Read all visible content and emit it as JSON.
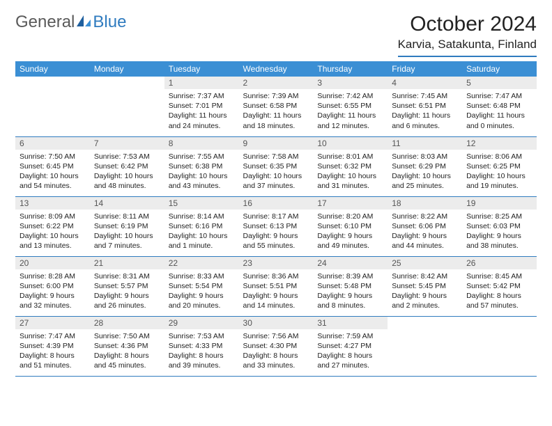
{
  "logo": {
    "text1": "General",
    "text2": "Blue"
  },
  "title": "October 2024",
  "location": "Karvia, Satakunta, Finland",
  "colors": {
    "header_bg": "#3b8fd4",
    "rule": "#2f7bbf",
    "daynum_bg": "#ececec",
    "text": "#222222",
    "logo_gray": "#5a5a5a",
    "logo_blue": "#2f7bbf"
  },
  "typography": {
    "title_fontsize": 30,
    "location_fontsize": 17,
    "weekday_fontsize": 12,
    "daynum_fontsize": 12,
    "body_fontsize": 10.5
  },
  "weekdays": [
    "Sunday",
    "Monday",
    "Tuesday",
    "Wednesday",
    "Thursday",
    "Friday",
    "Saturday"
  ],
  "weeks": [
    [
      null,
      null,
      {
        "d": "1",
        "sr": "Sunrise: 7:37 AM",
        "ss": "Sunset: 7:01 PM",
        "dl1": "Daylight: 11 hours",
        "dl2": "and 24 minutes."
      },
      {
        "d": "2",
        "sr": "Sunrise: 7:39 AM",
        "ss": "Sunset: 6:58 PM",
        "dl1": "Daylight: 11 hours",
        "dl2": "and 18 minutes."
      },
      {
        "d": "3",
        "sr": "Sunrise: 7:42 AM",
        "ss": "Sunset: 6:55 PM",
        "dl1": "Daylight: 11 hours",
        "dl2": "and 12 minutes."
      },
      {
        "d": "4",
        "sr": "Sunrise: 7:45 AM",
        "ss": "Sunset: 6:51 PM",
        "dl1": "Daylight: 11 hours",
        "dl2": "and 6 minutes."
      },
      {
        "d": "5",
        "sr": "Sunrise: 7:47 AM",
        "ss": "Sunset: 6:48 PM",
        "dl1": "Daylight: 11 hours",
        "dl2": "and 0 minutes."
      }
    ],
    [
      {
        "d": "6",
        "sr": "Sunrise: 7:50 AM",
        "ss": "Sunset: 6:45 PM",
        "dl1": "Daylight: 10 hours",
        "dl2": "and 54 minutes."
      },
      {
        "d": "7",
        "sr": "Sunrise: 7:53 AM",
        "ss": "Sunset: 6:42 PM",
        "dl1": "Daylight: 10 hours",
        "dl2": "and 48 minutes."
      },
      {
        "d": "8",
        "sr": "Sunrise: 7:55 AM",
        "ss": "Sunset: 6:38 PM",
        "dl1": "Daylight: 10 hours",
        "dl2": "and 43 minutes."
      },
      {
        "d": "9",
        "sr": "Sunrise: 7:58 AM",
        "ss": "Sunset: 6:35 PM",
        "dl1": "Daylight: 10 hours",
        "dl2": "and 37 minutes."
      },
      {
        "d": "10",
        "sr": "Sunrise: 8:01 AM",
        "ss": "Sunset: 6:32 PM",
        "dl1": "Daylight: 10 hours",
        "dl2": "and 31 minutes."
      },
      {
        "d": "11",
        "sr": "Sunrise: 8:03 AM",
        "ss": "Sunset: 6:29 PM",
        "dl1": "Daylight: 10 hours",
        "dl2": "and 25 minutes."
      },
      {
        "d": "12",
        "sr": "Sunrise: 8:06 AM",
        "ss": "Sunset: 6:25 PM",
        "dl1": "Daylight: 10 hours",
        "dl2": "and 19 minutes."
      }
    ],
    [
      {
        "d": "13",
        "sr": "Sunrise: 8:09 AM",
        "ss": "Sunset: 6:22 PM",
        "dl1": "Daylight: 10 hours",
        "dl2": "and 13 minutes."
      },
      {
        "d": "14",
        "sr": "Sunrise: 8:11 AM",
        "ss": "Sunset: 6:19 PM",
        "dl1": "Daylight: 10 hours",
        "dl2": "and 7 minutes."
      },
      {
        "d": "15",
        "sr": "Sunrise: 8:14 AM",
        "ss": "Sunset: 6:16 PM",
        "dl1": "Daylight: 10 hours",
        "dl2": "and 1 minute."
      },
      {
        "d": "16",
        "sr": "Sunrise: 8:17 AM",
        "ss": "Sunset: 6:13 PM",
        "dl1": "Daylight: 9 hours",
        "dl2": "and 55 minutes."
      },
      {
        "d": "17",
        "sr": "Sunrise: 8:20 AM",
        "ss": "Sunset: 6:10 PM",
        "dl1": "Daylight: 9 hours",
        "dl2": "and 49 minutes."
      },
      {
        "d": "18",
        "sr": "Sunrise: 8:22 AM",
        "ss": "Sunset: 6:06 PM",
        "dl1": "Daylight: 9 hours",
        "dl2": "and 44 minutes."
      },
      {
        "d": "19",
        "sr": "Sunrise: 8:25 AM",
        "ss": "Sunset: 6:03 PM",
        "dl1": "Daylight: 9 hours",
        "dl2": "and 38 minutes."
      }
    ],
    [
      {
        "d": "20",
        "sr": "Sunrise: 8:28 AM",
        "ss": "Sunset: 6:00 PM",
        "dl1": "Daylight: 9 hours",
        "dl2": "and 32 minutes."
      },
      {
        "d": "21",
        "sr": "Sunrise: 8:31 AM",
        "ss": "Sunset: 5:57 PM",
        "dl1": "Daylight: 9 hours",
        "dl2": "and 26 minutes."
      },
      {
        "d": "22",
        "sr": "Sunrise: 8:33 AM",
        "ss": "Sunset: 5:54 PM",
        "dl1": "Daylight: 9 hours",
        "dl2": "and 20 minutes."
      },
      {
        "d": "23",
        "sr": "Sunrise: 8:36 AM",
        "ss": "Sunset: 5:51 PM",
        "dl1": "Daylight: 9 hours",
        "dl2": "and 14 minutes."
      },
      {
        "d": "24",
        "sr": "Sunrise: 8:39 AM",
        "ss": "Sunset: 5:48 PM",
        "dl1": "Daylight: 9 hours",
        "dl2": "and 8 minutes."
      },
      {
        "d": "25",
        "sr": "Sunrise: 8:42 AM",
        "ss": "Sunset: 5:45 PM",
        "dl1": "Daylight: 9 hours",
        "dl2": "and 2 minutes."
      },
      {
        "d": "26",
        "sr": "Sunrise: 8:45 AM",
        "ss": "Sunset: 5:42 PM",
        "dl1": "Daylight: 8 hours",
        "dl2": "and 57 minutes."
      }
    ],
    [
      {
        "d": "27",
        "sr": "Sunrise: 7:47 AM",
        "ss": "Sunset: 4:39 PM",
        "dl1": "Daylight: 8 hours",
        "dl2": "and 51 minutes."
      },
      {
        "d": "28",
        "sr": "Sunrise: 7:50 AM",
        "ss": "Sunset: 4:36 PM",
        "dl1": "Daylight: 8 hours",
        "dl2": "and 45 minutes."
      },
      {
        "d": "29",
        "sr": "Sunrise: 7:53 AM",
        "ss": "Sunset: 4:33 PM",
        "dl1": "Daylight: 8 hours",
        "dl2": "and 39 minutes."
      },
      {
        "d": "30",
        "sr": "Sunrise: 7:56 AM",
        "ss": "Sunset: 4:30 PM",
        "dl1": "Daylight: 8 hours",
        "dl2": "and 33 minutes."
      },
      {
        "d": "31",
        "sr": "Sunrise: 7:59 AM",
        "ss": "Sunset: 4:27 PM",
        "dl1": "Daylight: 8 hours",
        "dl2": "and 27 minutes."
      },
      null,
      null
    ]
  ]
}
